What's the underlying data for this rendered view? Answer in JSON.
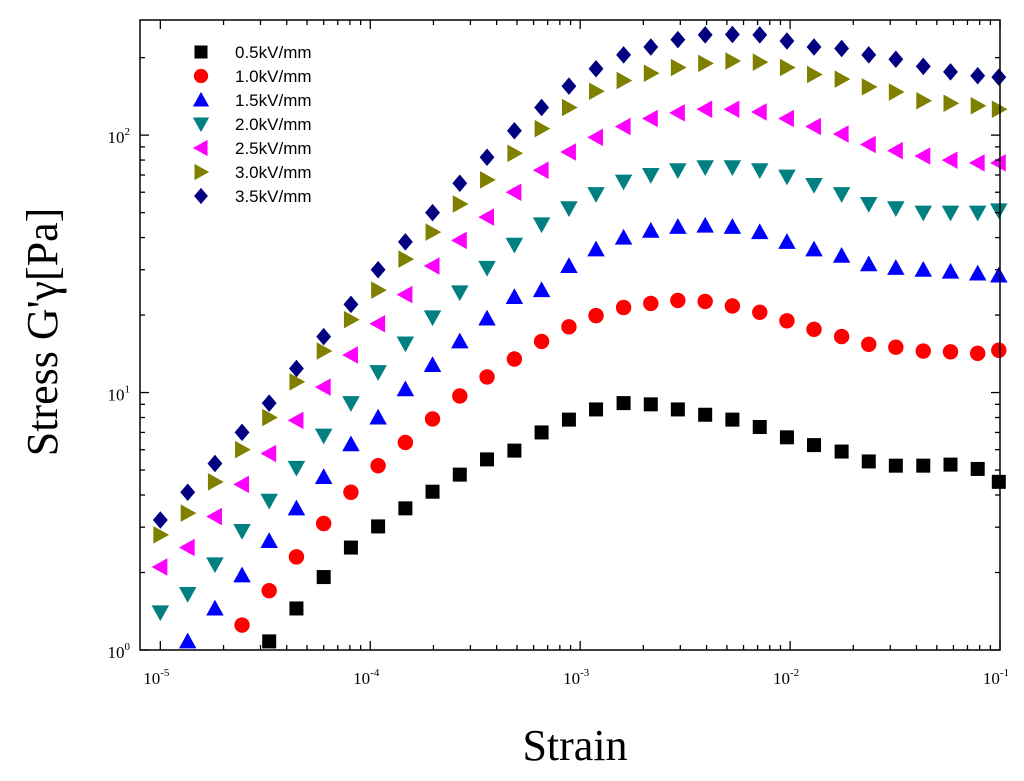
{
  "chart_data": {
    "type": "scatter",
    "title": "",
    "xlabel": "Strain",
    "ylabel": "Stress G'γ[Pa]",
    "xscale": "log",
    "yscale": "log",
    "xlim": [
      8e-06,
      0.1
    ],
    "ylim": [
      1,
      280
    ],
    "grid": false,
    "legend_position": "top-left",
    "x_ticks": [
      {
        "base": "10",
        "exp": "-5"
      },
      {
        "base": "10",
        "exp": "-4"
      },
      {
        "base": "10",
        "exp": "-3"
      },
      {
        "base": "10",
        "exp": "-2"
      },
      {
        "base": "10",
        "exp": "-1"
      }
    ],
    "y_ticks": [
      {
        "base": "10",
        "exp": "0"
      },
      {
        "base": "10",
        "exp": "1"
      },
      {
        "base": "10",
        "exp": "2"
      }
    ],
    "x": [
      1e-05,
      1.35e-05,
      1.82e-05,
      2.45e-05,
      3.3e-05,
      4.45e-05,
      6e-05,
      8.09e-05,
      0.000109,
      0.000147,
      0.000198,
      0.000267,
      0.00036,
      0.000486,
      0.000655,
      0.000884,
      0.00119,
      0.00161,
      0.00217,
      0.00292,
      0.00394,
      0.00531,
      0.00717,
      0.00966,
      0.013,
      0.0176,
      0.0237,
      0.0319,
      0.0431,
      0.0581,
      0.0783,
      0.0987
    ],
    "series": [
      {
        "name": "0.5kV/mm",
        "marker": "square",
        "color": "#000000",
        "values": [
          null,
          null,
          null,
          null,
          1.08,
          1.45,
          1.92,
          2.5,
          3.02,
          3.55,
          4.12,
          4.8,
          5.5,
          5.95,
          7.0,
          7.85,
          8.6,
          9.1,
          9.0,
          8.6,
          8.2,
          7.85,
          7.35,
          6.7,
          6.25,
          5.9,
          5.4,
          5.2,
          5.2,
          5.25,
          5.05,
          4.5
        ]
      },
      {
        "name": "1.0kV/mm",
        "marker": "circle",
        "color": "#ff0000",
        "values": [
          null,
          null,
          null,
          1.25,
          1.7,
          2.3,
          3.1,
          4.1,
          5.2,
          6.4,
          7.9,
          9.7,
          11.5,
          13.5,
          15.8,
          18.0,
          19.9,
          21.4,
          22.2,
          22.8,
          22.6,
          21.7,
          20.5,
          19.0,
          17.6,
          16.5,
          15.4,
          15.0,
          14.5,
          14.4,
          14.2,
          14.6
        ]
      },
      {
        "name": "1.5kV/mm",
        "marker": "triangle-up",
        "color": "#0000ff",
        "values": [
          null,
          1.08,
          1.45,
          1.95,
          2.65,
          3.55,
          4.7,
          6.3,
          8.0,
          10.3,
          12.8,
          15.8,
          19.4,
          23.5,
          25.0,
          31.0,
          36.0,
          40.0,
          42.5,
          44.0,
          44.5,
          44.0,
          42.0,
          38.5,
          36.0,
          34.0,
          31.5,
          30.5,
          30.0,
          29.5,
          29.0,
          28.5
        ]
      },
      {
        "name": "2.0kV/mm",
        "marker": "triangle-down",
        "color": "#008080",
        "values": [
          1.4,
          1.65,
          2.15,
          2.9,
          3.8,
          5.1,
          6.8,
          9.1,
          12.0,
          15.5,
          19.6,
          24.5,
          30.5,
          37.5,
          45.0,
          52.0,
          59.0,
          66.0,
          70.0,
          73.0,
          75.0,
          75.0,
          73.0,
          69.0,
          64.0,
          59.0,
          54.0,
          52.0,
          50.0,
          50.0,
          50.0,
          51.0
        ]
      },
      {
        "name": "2.5kV/mm",
        "marker": "triangle-left",
        "color": "#ff00ff",
        "values": [
          2.1,
          2.5,
          3.3,
          4.4,
          5.8,
          7.8,
          10.5,
          14.0,
          18.5,
          24.0,
          31.0,
          39.0,
          48.0,
          60.0,
          73.0,
          86.0,
          98.0,
          108.0,
          116.0,
          122.0,
          126.0,
          126.0,
          123.0,
          116.0,
          108.0,
          101.0,
          92.0,
          87.0,
          83.0,
          80.0,
          78.0,
          78.0
        ]
      },
      {
        "name": "3.0kV/mm",
        "marker": "triangle-right",
        "color": "#808000",
        "values": [
          2.8,
          3.4,
          4.5,
          6.0,
          8.0,
          11.0,
          14.5,
          19.2,
          25.0,
          33.0,
          42.0,
          54.0,
          67.0,
          85.0,
          106.0,
          128.0,
          148.0,
          163.0,
          174.0,
          183.0,
          190.0,
          194.0,
          192.0,
          183.0,
          172.0,
          165.0,
          154.0,
          147.0,
          136.0,
          133.0,
          130.0,
          126.0
        ]
      },
      {
        "name": "3.5kV/mm",
        "marker": "diamond",
        "color": "#000080",
        "values": [
          3.2,
          4.1,
          5.3,
          7.0,
          9.1,
          12.4,
          16.5,
          22.0,
          30.0,
          38.5,
          50.0,
          65.0,
          82.0,
          104.0,
          128.0,
          155.0,
          181.0,
          205.0,
          220.0,
          235.0,
          245.0,
          246.0,
          245.0,
          232.0,
          220.0,
          217.0,
          205.0,
          197.0,
          185.0,
          176.0,
          170.0,
          168.0
        ]
      }
    ]
  }
}
